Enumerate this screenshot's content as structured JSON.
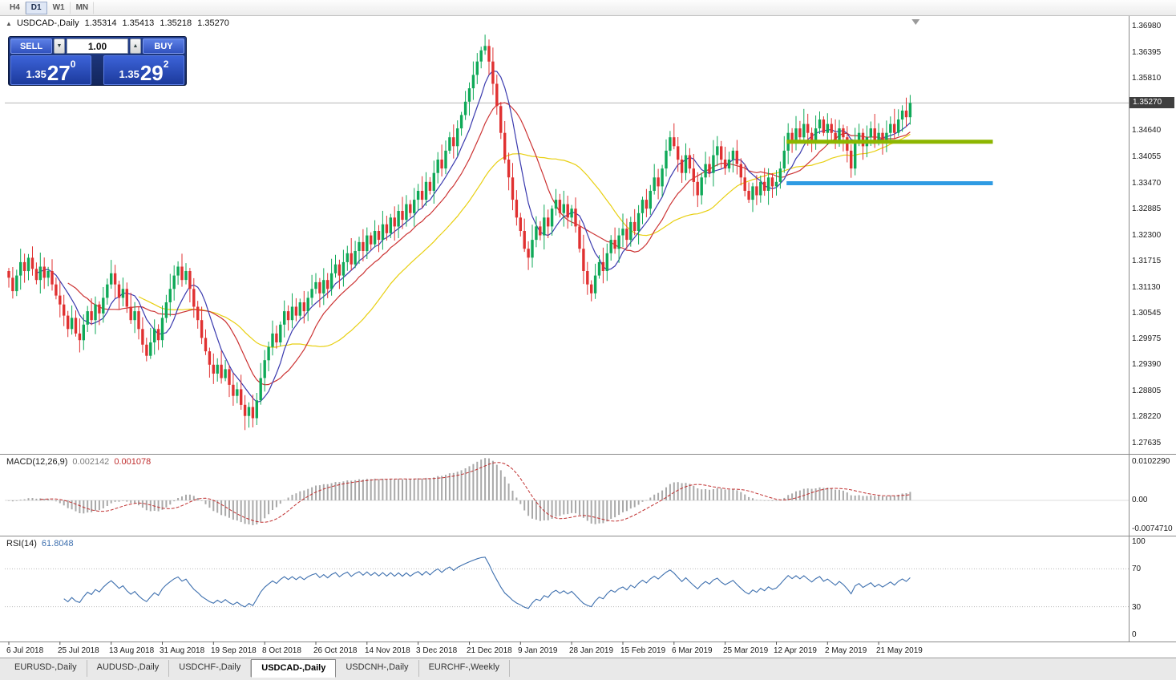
{
  "topbar": {
    "timeframes": [
      "H4",
      "D1",
      "W1",
      "MN"
    ],
    "active": "D1"
  },
  "icons": {
    "chart_marker": "▲",
    "spin_down": "▼",
    "spin_up": "▲"
  },
  "title": {
    "symbol_period": "USDCAD-,Daily",
    "open": "1.35314",
    "high": "1.35413",
    "low": "1.35218",
    "close": "1.35270"
  },
  "one_click": {
    "sell_label": "SELL",
    "buy_label": "BUY",
    "volume": "1.00",
    "sell_price": {
      "base": "1.35",
      "pips": "27",
      "point": "0"
    },
    "buy_price": {
      "base": "1.35",
      "pips": "29",
      "point": "2"
    }
  },
  "price_axis": {
    "labels": [
      "1.36980",
      "1.36395",
      "1.35810",
      "1.34640",
      "1.34055",
      "1.33470",
      "1.32885",
      "1.32300",
      "1.31715",
      "1.31130",
      "1.30545",
      "1.29975",
      "1.29390",
      "1.28805",
      "1.28220",
      "1.27635"
    ],
    "current_badge": "1.35270"
  },
  "macd": {
    "name": "MACD(12,26,9)",
    "value_main": "0.002142",
    "value_signal": "0.001078",
    "axis_labels": [
      "0.0102290",
      "0.00",
      "-0.0074710"
    ],
    "params": {
      "fast": 12,
      "slow": 26,
      "signal": 9
    }
  },
  "rsi": {
    "name": "RSI(14)",
    "value": "61.8048",
    "period": 14,
    "axis_labels": [
      "100",
      "70",
      "30",
      "0"
    ],
    "levels": [
      70,
      30
    ]
  },
  "tabbar": {
    "tabs": [
      "EURUSD-,Daily",
      "AUDUSD-,Daily",
      "USDCHF-,Daily",
      "USDCAD-,Daily",
      "USDCNH-,Daily",
      "EURCHF-,Weekly"
    ],
    "active_index": 3
  },
  "chart_data": {
    "type": "candlestick",
    "symbol": "USDCAD",
    "period": "Daily",
    "title": "USDCAD-,Daily 1.35314 1.35413 1.35218 1.35270",
    "x_labels": [
      "6 Jul 2018",
      "25 Jul 2018",
      "13 Aug 2018",
      "31 Aug 2018",
      "19 Sep 2018",
      "8 Oct 2018",
      "26 Oct 2018",
      "14 Nov 2018",
      "3 Dec 2018",
      "21 Dec 2018",
      "9 Jan 2019",
      "28 Jan 2019",
      "15 Feb 2019",
      "6 Mar 2019",
      "25 Mar 2019",
      "12 Apr 2019",
      "2 May 2019",
      "21 May 2019"
    ],
    "label_every": 13,
    "ylim": [
      1.274,
      1.3722
    ],
    "macd_ylim": [
      -0.00747,
      0.01023
    ],
    "rsi_ylim": [
      0,
      100
    ],
    "latest": {
      "open": 1.35314,
      "high": 1.35413,
      "low": 1.35218,
      "close": 1.3527
    },
    "candles": {
      "first_open": 1.315,
      "closes": [
        1.3135,
        1.3105,
        1.314,
        1.317,
        1.315,
        1.318,
        1.3155,
        1.313,
        1.316,
        1.3135,
        1.315,
        1.312,
        1.3095,
        1.3075,
        1.305,
        1.302,
        1.3045,
        1.301,
        1.2995,
        1.303,
        1.306,
        1.304,
        1.3075,
        1.3055,
        1.309,
        1.312,
        1.3145,
        1.312,
        1.309,
        1.311,
        1.307,
        1.304,
        1.306,
        1.302,
        1.2985,
        1.296,
        1.299,
        1.302,
        1.2995,
        1.3045,
        1.308,
        1.311,
        1.314,
        1.316,
        1.313,
        1.315,
        1.311,
        1.307,
        1.304,
        1.3,
        1.297,
        1.294,
        1.292,
        1.294,
        1.291,
        1.293,
        1.2895,
        1.287,
        1.2885,
        1.285,
        1.2825,
        1.2845,
        1.282,
        1.286,
        1.291,
        1.295,
        1.298,
        1.301,
        1.299,
        1.303,
        1.306,
        1.304,
        1.307,
        1.305,
        1.308,
        1.306,
        1.309,
        1.311,
        1.3125,
        1.31,
        1.313,
        1.311,
        1.3145,
        1.3165,
        1.314,
        1.317,
        1.319,
        1.3165,
        1.3195,
        1.3215,
        1.3195,
        1.323,
        1.321,
        1.324,
        1.322,
        1.3255,
        1.3235,
        1.327,
        1.325,
        1.3285,
        1.3265,
        1.33,
        1.328,
        1.331,
        1.333,
        1.331,
        1.335,
        1.333,
        1.337,
        1.34,
        1.338,
        1.342,
        1.345,
        1.343,
        1.347,
        1.35,
        1.353,
        1.356,
        1.359,
        1.362,
        1.3645,
        1.3655,
        1.362,
        1.357,
        1.352,
        1.346,
        1.34,
        1.336,
        1.331,
        1.327,
        1.324,
        1.32,
        1.318,
        1.322,
        1.325,
        1.323,
        1.327,
        1.325,
        1.329,
        1.331,
        1.328,
        1.33,
        1.327,
        1.329,
        1.325,
        1.32,
        1.315,
        1.312,
        1.31,
        1.314,
        1.317,
        1.315,
        1.319,
        1.322,
        1.32,
        1.323,
        1.3245,
        1.322,
        1.326,
        1.324,
        1.328,
        1.331,
        1.329,
        1.333,
        1.336,
        1.334,
        1.338,
        1.342,
        1.345,
        1.343,
        1.34,
        1.337,
        1.341,
        1.338,
        1.335,
        1.332,
        1.336,
        1.339,
        1.337,
        1.341,
        1.343,
        1.34,
        1.338,
        1.34,
        1.342,
        1.339,
        1.336,
        1.333,
        1.331,
        1.334,
        1.332,
        1.335,
        1.333,
        1.336,
        1.334,
        1.335,
        1.338,
        1.342,
        1.346,
        1.344,
        1.347,
        1.345,
        1.348,
        1.346,
        1.344,
        1.347,
        1.349,
        1.346,
        1.348,
        1.346,
        1.344,
        1.347,
        1.345,
        1.342,
        1.338,
        1.344,
        1.346,
        1.343,
        1.345,
        1.347,
        1.344,
        1.346,
        1.344,
        1.346,
        1.348,
        1.346,
        1.349,
        1.351,
        1.3495,
        1.3527
      ]
    },
    "overlays": {
      "resistance_line": 1.344,
      "support_line": 1.3347,
      "current_price_line": 1.3527,
      "rays_from_index": 198,
      "rays_to_index": 250,
      "moving_averages": [
        {
          "period": 8,
          "color": "#3a3aae"
        },
        {
          "period": 16,
          "color": "#cc3333"
        },
        {
          "period": 34,
          "color": "#e8cf10"
        }
      ]
    },
    "colors": {
      "up": "#0fa958",
      "down": "#e03131",
      "macd_hist": "#a9a9a9",
      "macd_signal": "#c03030",
      "rsi_line": "#3d6fae",
      "resistance": "#8DB600",
      "support": "#2F9BE3",
      "price_line": "#b4b4b4",
      "badge_bg": "#3f3f3f"
    }
  }
}
